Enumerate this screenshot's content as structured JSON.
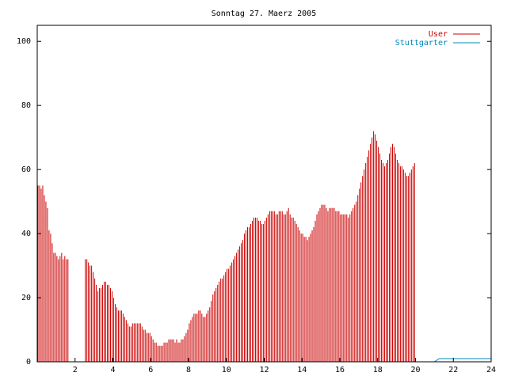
{
  "chart_data": {
    "type": "bar",
    "title": "Sonntag 27. Maerz 2005",
    "xlabel": "",
    "ylabel": "",
    "xlim": [
      0,
      24
    ],
    "ylim": [
      0,
      105
    ],
    "x_ticks": [
      2,
      4,
      6,
      8,
      10,
      12,
      14,
      16,
      18,
      20,
      22,
      24
    ],
    "y_ticks": [
      0,
      20,
      40,
      60,
      80,
      100
    ],
    "grid": false,
    "legend_position": "top-right",
    "interval_hours": 0.0833,
    "series": [
      {
        "name": "User",
        "color": "#cc0000",
        "start_x": 0,
        "values": [
          55,
          55,
          54,
          55,
          52,
          50,
          48,
          41,
          40,
          37,
          34,
          34,
          33,
          32,
          33,
          34,
          32,
          33,
          32,
          32,
          0,
          0,
          0,
          0,
          0,
          0,
          0,
          0,
          0,
          0,
          32,
          32,
          31,
          30,
          30,
          28,
          26,
          24,
          22,
          23,
          23,
          24,
          25,
          25,
          24,
          24,
          23,
          22,
          20,
          18,
          17,
          16,
          16,
          16,
          15,
          14,
          13,
          12,
          11,
          11,
          12,
          12,
          12,
          12,
          12,
          12,
          11,
          10,
          10,
          9,
          9,
          9,
          8,
          7,
          6,
          6,
          5,
          5,
          5,
          5,
          6,
          6,
          6,
          7,
          7,
          7,
          7,
          6,
          7,
          6,
          6,
          7,
          7,
          8,
          9,
          10,
          12,
          13,
          14,
          15,
          15,
          15,
          16,
          16,
          15,
          14,
          14,
          15,
          16,
          17,
          19,
          21,
          22,
          23,
          24,
          25,
          26,
          26,
          27,
          28,
          29,
          29,
          30,
          31,
          32,
          33,
          34,
          35,
          36,
          37,
          38,
          40,
          41,
          42,
          42,
          43,
          44,
          45,
          45,
          45,
          44,
          44,
          43,
          43,
          44,
          45,
          46,
          47,
          47,
          47,
          47,
          46,
          46,
          47,
          47,
          47,
          46,
          46,
          47,
          48,
          46,
          45,
          45,
          44,
          43,
          42,
          41,
          40,
          40,
          39,
          39,
          38,
          39,
          40,
          41,
          42,
          44,
          46,
          47,
          48,
          49,
          49,
          49,
          48,
          47,
          48,
          48,
          48,
          48,
          47,
          47,
          47,
          46,
          46,
          46,
          46,
          46,
          45,
          46,
          47,
          48,
          49,
          50,
          52,
          54,
          56,
          58,
          60,
          62,
          64,
          66,
          68,
          70,
          72,
          71,
          69,
          67,
          65,
          63,
          62,
          61,
          62,
          63,
          65,
          67,
          68,
          67,
          65,
          63,
          62,
          61,
          61,
          60,
          59,
          58,
          58,
          59,
          60,
          61,
          62
        ]
      },
      {
        "name": "Stuttgarter",
        "color": "#0088bb",
        "points": [
          [
            0,
            0
          ],
          [
            21.0,
            0
          ],
          [
            21.25,
            1
          ],
          [
            24,
            1
          ]
        ]
      }
    ]
  }
}
